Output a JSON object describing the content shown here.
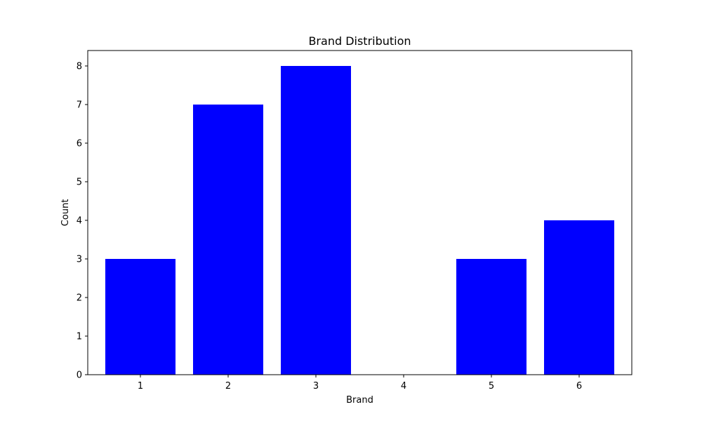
{
  "chart_data": {
    "type": "bar",
    "title": "Brand Distribution",
    "xlabel": "Brand",
    "ylabel": "Count",
    "categories": [
      "1",
      "2",
      "3",
      "4",
      "5",
      "6"
    ],
    "values": [
      3,
      7,
      8,
      0,
      3,
      4
    ],
    "yticks": [
      "0",
      "1",
      "2",
      "3",
      "4",
      "5",
      "6",
      "7",
      "8"
    ],
    "ylim": [
      0,
      8.4
    ],
    "grid": false,
    "bar_color": "#0000ff",
    "axis_color": "#000000"
  }
}
